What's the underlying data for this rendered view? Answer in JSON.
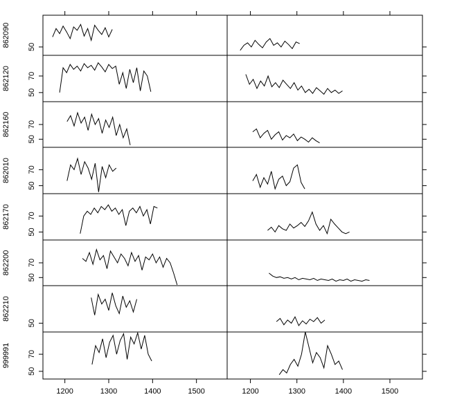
{
  "chart_data": {
    "type": "line",
    "color": "#000000",
    "xlim": [
      1150,
      1570
    ],
    "xticks": [
      1200,
      1300,
      1400,
      1500
    ],
    "rows": [
      {
        "name": "862090",
        "ylim": [
          40,
          88
        ],
        "yticks": [
          50
        ],
        "series": [
          {
            "x": [
              1172,
              1180,
              1188,
              1196,
              1204,
              1212,
              1220,
              1228,
              1236,
              1244,
              1252,
              1260,
              1268,
              1276,
              1284,
              1292,
              1300,
              1308
            ],
            "values": [
              62,
              72,
              66,
              75,
              68,
              60,
              74,
              70,
              77,
              63,
              72,
              58,
              76,
              70,
              65,
              73,
              62,
              71
            ]
          },
          {
            "x": [
              1178,
              1186,
              1194,
              1202,
              1210,
              1218,
              1226,
              1234,
              1242,
              1250,
              1258,
              1266,
              1274,
              1282,
              1290,
              1298,
              1306
            ],
            "values": [
              46,
              52,
              55,
              50,
              58,
              53,
              49,
              56,
              60,
              52,
              55,
              50,
              57,
              53,
              48,
              56,
              54
            ]
          }
        ]
      },
      {
        "name": "862120",
        "ylim": [
          39,
          95
        ],
        "yticks": [
          50,
          70
        ],
        "series": [
          {
            "x": [
              1188,
              1196,
              1204,
              1212,
              1220,
              1228,
              1236,
              1244,
              1252,
              1260,
              1268,
              1276,
              1284,
              1292,
              1300,
              1308,
              1316,
              1324,
              1332,
              1340,
              1348,
              1356,
              1364,
              1372,
              1380,
              1388,
              1396
            ],
            "values": [
              50,
              80,
              74,
              84,
              78,
              82,
              76,
              85,
              80,
              83,
              77,
              86,
              81,
              75,
              84,
              79,
              82,
              60,
              74,
              55,
              78,
              62,
              80,
              52,
              76,
              70,
              51
            ]
          },
          {
            "x": [
              1190,
              1198,
              1206,
              1214,
              1222,
              1230,
              1238,
              1246,
              1254,
              1262,
              1270,
              1278,
              1286,
              1294,
              1302,
              1310,
              1318,
              1326,
              1334,
              1342,
              1350,
              1358,
              1366,
              1374,
              1382,
              1390,
              1398
            ],
            "values": [
              72,
              60,
              66,
              55,
              64,
              58,
              70,
              57,
              62,
              56,
              65,
              60,
              55,
              62,
              53,
              58,
              50,
              54,
              49,
              56,
              52,
              48,
              55,
              50,
              53,
              49,
              52
            ]
          }
        ]
      },
      {
        "name": "862160",
        "ylim": [
          39,
          101
        ],
        "yticks": [
          50,
          70
        ],
        "series": [
          {
            "x": [
              1205,
              1213,
              1221,
              1229,
              1237,
              1245,
              1253,
              1261,
              1269,
              1277,
              1285,
              1293,
              1301,
              1309,
              1317,
              1325,
              1333,
              1341,
              1349
            ],
            "values": [
              74,
              82,
              68,
              86,
              72,
              80,
              62,
              84,
              70,
              78,
              58,
              76,
              66,
              80,
              55,
              70,
              52,
              64,
              42
            ]
          },
          {
            "x": [
              1205,
              1213,
              1221,
              1229,
              1237,
              1245,
              1253,
              1261,
              1269,
              1277,
              1285,
              1293,
              1301,
              1309,
              1317,
              1325,
              1333,
              1341,
              1349
            ],
            "values": [
              60,
              64,
              52,
              58,
              62,
              50,
              56,
              60,
              49,
              55,
              52,
              57,
              48,
              53,
              50,
              46,
              52,
              48,
              45
            ]
          }
        ]
      },
      {
        "name": "862010",
        "ylim": [
          40,
          98
        ],
        "yticks": [
          50,
          70
        ],
        "series": [
          {
            "x": [
              1205,
              1213,
              1221,
              1229,
              1237,
              1245,
              1253,
              1261,
              1269,
              1277,
              1285,
              1293,
              1301,
              1309,
              1317
            ],
            "values": [
              56,
              76,
              70,
              84,
              64,
              80,
              72,
              58,
              78,
              42,
              74,
              60,
              76,
              68,
              72
            ]
          },
          {
            "x": [
              1205,
              1213,
              1221,
              1229,
              1237,
              1245,
              1253,
              1261,
              1269,
              1277,
              1285,
              1293,
              1301,
              1309,
              1317
            ],
            "values": [
              56,
              64,
              48,
              60,
              52,
              68,
              46,
              58,
              62,
              50,
              55,
              72,
              76,
              54,
              46
            ]
          }
        ]
      },
      {
        "name": "862170",
        "ylim": [
          40,
          98
        ],
        "yticks": [
          50,
          70
        ],
        "series": [
          {
            "x": [
              1235,
              1243,
              1251,
              1259,
              1267,
              1275,
              1283,
              1291,
              1299,
              1307,
              1315,
              1323,
              1331,
              1339,
              1347,
              1355,
              1363,
              1371,
              1379,
              1387,
              1395,
              1403,
              1411
            ],
            "values": [
              48,
              70,
              76,
              72,
              80,
              74,
              82,
              78,
              84,
              76,
              80,
              72,
              78,
              58,
              76,
              80,
              74,
              82,
              70,
              78,
              60,
              82,
              80
            ]
          },
          {
            "x": [
              1237,
              1245,
              1253,
              1261,
              1269,
              1277,
              1285,
              1293,
              1301,
              1309,
              1317,
              1325,
              1333,
              1341,
              1349,
              1357,
              1365,
              1373,
              1381,
              1389,
              1397,
              1405,
              1413
            ],
            "values": [
              52,
              56,
              50,
              58,
              54,
              52,
              60,
              55,
              58,
              62,
              57,
              64,
              75,
              60,
              52,
              58,
              48,
              66,
              60,
              55,
              50,
              48,
              50
            ]
          }
        ]
      },
      {
        "name": "862200",
        "ylim": [
          39,
          101
        ],
        "yticks": [
          50,
          70
        ],
        "series": [
          {
            "x": [
              1240,
              1248,
              1256,
              1264,
              1272,
              1280,
              1288,
              1296,
              1304,
              1312,
              1320,
              1328,
              1336,
              1344,
              1352,
              1360,
              1368,
              1376,
              1384,
              1392,
              1400,
              1408,
              1416,
              1424,
              1432,
              1440,
              1448,
              1456
            ],
            "values": [
              76,
              72,
              84,
              68,
              88,
              74,
              80,
              62,
              86,
              78,
              70,
              82,
              76,
              66,
              84,
              72,
              80,
              60,
              78,
              74,
              82,
              70,
              78,
              64,
              76,
              70,
              56,
              40
            ]
          },
          {
            "x": [
              1240,
              1248,
              1256,
              1264,
              1272,
              1280,
              1288,
              1296,
              1304,
              1312,
              1320,
              1328,
              1336,
              1344,
              1352,
              1360,
              1368,
              1376,
              1384,
              1392,
              1400,
              1408,
              1416,
              1424,
              1432,
              1440,
              1448,
              1456
            ],
            "values": [
              56,
              52,
              50,
              51,
              49,
              50,
              48,
              50,
              47,
              49,
              48,
              47,
              49,
              46,
              48,
              47,
              46,
              48,
              45,
              47,
              46,
              48,
              45,
              47,
              46,
              45,
              47,
              46
            ]
          }
        ]
      },
      {
        "name": "862210",
        "ylim": [
          39,
          97
        ],
        "yticks": [
          50
        ],
        "series": [
          {
            "x": [
              1260,
              1268,
              1276,
              1284,
              1292,
              1300,
              1308,
              1316,
              1324,
              1332,
              1340,
              1348,
              1356,
              1364
            ],
            "values": [
              82,
              60,
              86,
              74,
              80,
              66,
              88,
              72,
              62,
              84,
              70,
              78,
              64,
              80
            ]
          },
          {
            "x": [
              1256,
              1264,
              1272,
              1280,
              1288,
              1296,
              1304,
              1312,
              1320,
              1328,
              1336,
              1344,
              1352,
              1360
            ],
            "values": [
              52,
              56,
              48,
              54,
              50,
              58,
              47,
              53,
              49,
              55,
              52,
              57,
              50,
              54
            ]
          }
        ]
      },
      {
        "name": "999991",
        "ylim": [
          41,
          96
        ],
        "yticks": [
          50,
          70
        ],
        "series": [
          {
            "x": [
              1262,
              1270,
              1278,
              1286,
              1294,
              1302,
              1310,
              1318,
              1326,
              1334,
              1342,
              1350,
              1358,
              1366,
              1374,
              1382,
              1390,
              1398
            ],
            "values": [
              58,
              80,
              72,
              88,
              66,
              84,
              92,
              70,
              86,
              94,
              64,
              90,
              82,
              95,
              76,
              92,
              70,
              62
            ]
          },
          {
            "x": [
              1262,
              1270,
              1278,
              1286,
              1294,
              1302,
              1310,
              1318,
              1326,
              1334,
              1342,
              1350,
              1358,
              1366,
              1374,
              1382,
              1390,
              1398
            ],
            "values": [
              46,
              52,
              48,
              58,
              64,
              56,
              70,
              96,
              78,
              60,
              72,
              66,
              54,
              80,
              70,
              58,
              62,
              52
            ]
          }
        ]
      }
    ]
  }
}
